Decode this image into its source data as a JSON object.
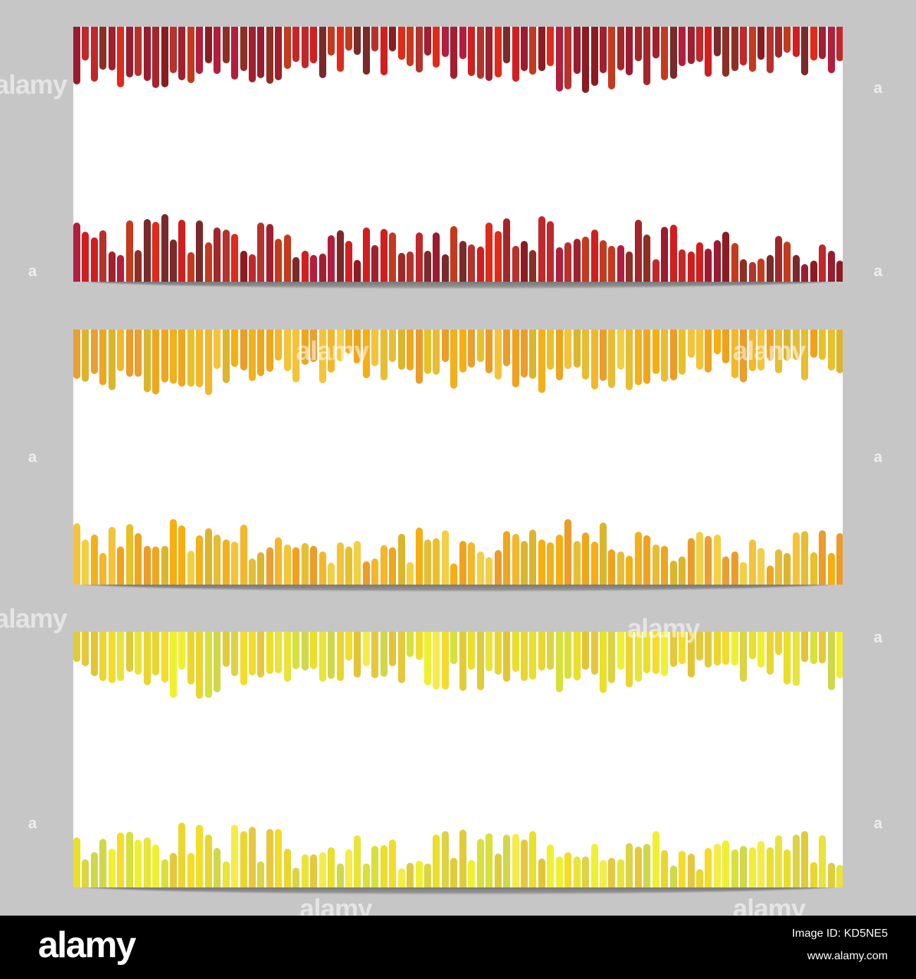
{
  "banners": [
    {
      "name": "red",
      "palette": [
        "#8b1c22",
        "#a3272a",
        "#c0282b",
        "#9b1b30",
        "#7a2a2a",
        "#b5322d",
        "#d11f1f",
        "#a0202f",
        "#c43a1e",
        "#8e2f25",
        "#b21e3e",
        "#e02a1a"
      ]
    },
    {
      "name": "orange",
      "palette": [
        "#f2b01c",
        "#f5c33a",
        "#f0a21e",
        "#e8c12a",
        "#f7ae12",
        "#eb9c2a",
        "#e6bd34",
        "#f3cf45",
        "#eea61f",
        "#dcb52e",
        "#f4b72b",
        "#e89f33"
      ]
    },
    {
      "name": "yellow",
      "palette": [
        "#e9e43a",
        "#f3dd2a",
        "#dcd345",
        "#f0f032",
        "#e2c535",
        "#d8e03c",
        "#ebd62f",
        "#f5ec4a",
        "#e0cc3a",
        "#cfd84a",
        "#eadf29",
        "#e6c83e"
      ]
    }
  ],
  "watermark": {
    "logo": "alamy",
    "mark": "a"
  },
  "footer": {
    "logo": "alamy",
    "image_id": "Image ID: KD5NE5",
    "url": "www.alamy.com"
  }
}
